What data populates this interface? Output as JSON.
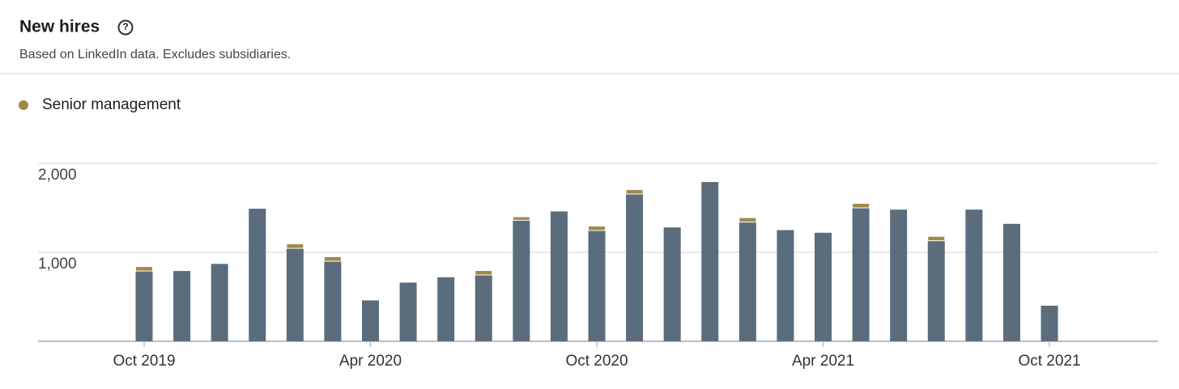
{
  "chart_data": {
    "type": "bar",
    "stacked": true,
    "title": "New hires",
    "subtitle": "Based on LinkedIn data. Excludes subsidiaries.",
    "categories": [
      "Oct 2019",
      null,
      null,
      null,
      null,
      null,
      "Apr 2020",
      null,
      null,
      null,
      null,
      null,
      "Oct 2020",
      null,
      null,
      null,
      null,
      null,
      "Apr 2021",
      null,
      null,
      null,
      null,
      null,
      "Oct 2021"
    ],
    "series": [
      {
        "color": "#5b6d7c",
        "values": [
          790,
          790,
          870,
          1490,
          1045,
          900,
          460,
          660,
          720,
          745,
          1360,
          1460,
          1245,
          1655,
          1280,
          1790,
          1340,
          1250,
          1220,
          1500,
          1480,
          1130,
          1480,
          1320,
          400
        ]
      },
      {
        "name": "Senior management",
        "color": "#a08a4a",
        "values": [
          50,
          0,
          0,
          0,
          50,
          50,
          0,
          0,
          0,
          50,
          40,
          0,
          50,
          50,
          0,
          0,
          50,
          0,
          0,
          50,
          0,
          50,
          0,
          0,
          0
        ]
      }
    ],
    "ylim": [
      0,
      2000
    ],
    "yticks": [
      {
        "value": 1000,
        "label": "1,000"
      },
      {
        "value": 2000,
        "label": "2,000"
      }
    ],
    "grid": true
  }
}
